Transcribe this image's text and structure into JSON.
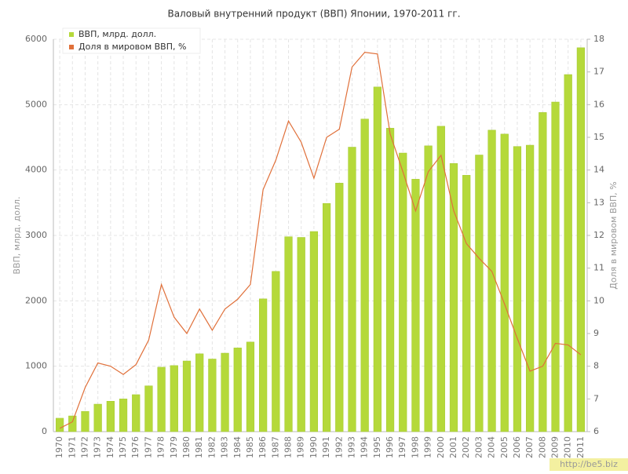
{
  "chart_data": {
    "type": "bar_line",
    "title": "Валовый внутренний продукт (ВВП) Японии, 1970-2011 гг.",
    "y_label": "ВВП, млрд. долл.",
    "y2_label": "Доля в мировом ВВП, %",
    "watermark": "http://be5.biz",
    "categories": [
      "1970",
      "1971",
      "1972",
      "1973",
      "1974",
      "1975",
      "1976",
      "1977",
      "1978",
      "1979",
      "1980",
      "1981",
      "1982",
      "1983",
      "1984",
      "1985",
      "1986",
      "1987",
      "1988",
      "1989",
      "1990",
      "1991",
      "1992",
      "1993",
      "1994",
      "1995",
      "1996",
      "1997",
      "1998",
      "1999",
      "2000",
      "2001",
      "2002",
      "2003",
      "2004",
      "2005",
      "2006",
      "2007",
      "2008",
      "2009",
      "2010",
      "2011"
    ],
    "series": [
      {
        "name": "ВВП, млрд. долл.",
        "color": "#b5d93a",
        "axis": "y",
        "values": [
          205,
          240,
          310,
          420,
          465,
          500,
          565,
          700,
          985,
          1010,
          1080,
          1190,
          1110,
          1200,
          1280,
          1370,
          2030,
          2450,
          2980,
          2970,
          3060,
          3490,
          3800,
          4350,
          4780,
          5270,
          4640,
          4260,
          3860,
          4370,
          4670,
          4100,
          3920,
          4230,
          4610,
          4550,
          4360,
          4380,
          4880,
          5040,
          5460,
          5870
        ]
      },
      {
        "name": "Доля в мировом ВВП, %",
        "color": "#e0703a",
        "axis": "y2",
        "values": [
          6.1,
          6.3,
          7.35,
          8.1,
          8.0,
          7.75,
          8.05,
          8.8,
          10.5,
          9.5,
          9.0,
          9.75,
          9.1,
          9.75,
          10.05,
          10.5,
          13.4,
          14.3,
          15.5,
          14.85,
          13.75,
          15.0,
          15.25,
          17.15,
          17.6,
          17.55,
          15.1,
          13.95,
          12.75,
          13.95,
          14.45,
          12.75,
          11.75,
          11.3,
          10.9,
          9.9,
          8.85,
          7.85,
          8.0,
          8.7,
          8.65,
          8.35
        ]
      }
    ],
    "ylim": [
      0,
      6000
    ],
    "yticks": [
      0,
      1000,
      2000,
      3000,
      4000,
      5000,
      6000
    ],
    "y2lim": [
      6,
      18
    ],
    "y2ticks": [
      6,
      7,
      8,
      9,
      10,
      11,
      12,
      13,
      14,
      15,
      16,
      17,
      18
    ],
    "grid": true,
    "legend": "top-left"
  }
}
